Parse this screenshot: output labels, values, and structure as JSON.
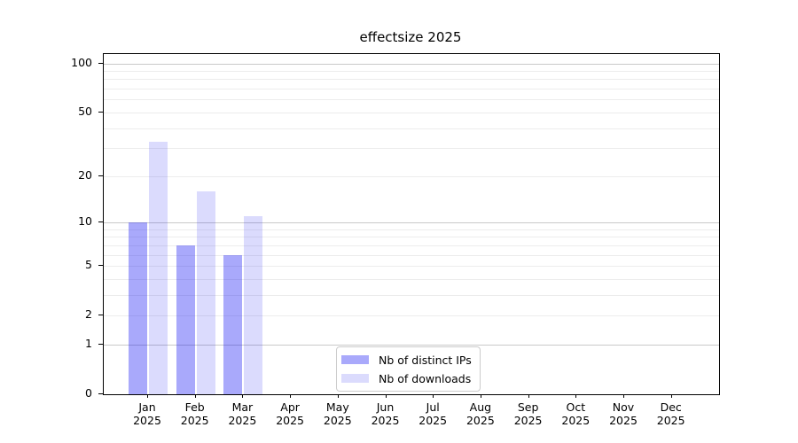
{
  "title": "effectsize 2025",
  "chart_data": {
    "type": "bar",
    "title": "effectsize 2025",
    "categories": [
      "Jan",
      "Feb",
      "Mar",
      "Apr",
      "May",
      "Jun",
      "Jul",
      "Aug",
      "Sep",
      "Oct",
      "Nov",
      "Dec"
    ],
    "x_year_label": "2025",
    "series": [
      {
        "name": "Nb of distinct IPs",
        "color": "rgba(30,30,245,0.38)",
        "values": [
          10,
          7,
          6,
          null,
          null,
          null,
          null,
          null,
          null,
          null,
          null,
          null
        ]
      },
      {
        "name": "Nb of downloads",
        "color": "rgba(30,30,245,0.16)",
        "values": [
          33,
          16,
          11,
          null,
          null,
          null,
          null,
          null,
          null,
          null,
          null,
          null
        ]
      }
    ],
    "yscale": "log1p",
    "ylim": [
      0,
      114
    ],
    "yticks": [
      0,
      1,
      2,
      5,
      10,
      20,
      50,
      100
    ],
    "grid_major_at": [
      1,
      10,
      100
    ],
    "grid_minor_at": [
      2,
      3,
      4,
      5,
      6,
      7,
      8,
      9,
      20,
      30,
      40,
      50,
      60,
      70,
      80,
      90
    ],
    "grid": true,
    "legend_position": "lower center",
    "xlabel": "",
    "ylabel": ""
  },
  "colors": {
    "bar_ips": "rgba(30,30,245,0.38)",
    "bar_downloads": "rgba(30,30,245,0.16)",
    "grid_major": "#c9c9c9",
    "grid_minor": "#ececec",
    "spine": "#000000",
    "legend_border": "#cccccc",
    "background": "#ffffff"
  }
}
